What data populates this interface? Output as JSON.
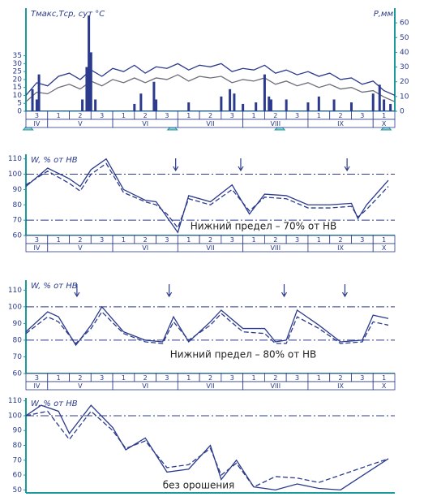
{
  "chart_data": [
    {
      "type": "combo",
      "y_label": "Tмакс,Tср, сут °С",
      "y2_label": "Р,мм",
      "xlim": [
        0,
        17
      ],
      "ylim": [
        0,
        65
      ],
      "yticks": [
        0,
        5,
        10,
        15,
        20,
        25,
        30,
        35
      ],
      "y2lim": [
        0,
        70
      ],
      "y2ticks": [
        0,
        10,
        20,
        30,
        40,
        50,
        60
      ],
      "decades": [
        "3",
        "1",
        "2",
        "3",
        "1",
        "2",
        "3",
        "1",
        "2",
        "3",
        "1",
        "2",
        "3",
        "1",
        "2",
        "3",
        "1"
      ],
      "months": [
        "IV",
        "V",
        "VI",
        "VII",
        "VIII",
        "IX",
        "X"
      ],
      "month_decades": [
        1,
        3,
        3,
        3,
        3,
        3,
        1
      ],
      "markers_x": [
        0.1,
        6.75,
        11.7,
        16.6
      ],
      "series": [
        {
          "type": "line",
          "color": "#2b3a8c",
          "x": [
            0,
            0.5,
            1,
            1.5,
            2,
            2.5,
            3,
            3.5,
            4,
            4.5,
            5,
            5.5,
            6,
            6.5,
            7,
            7.5,
            8,
            8.5,
            9,
            9.5,
            10,
            10.5,
            11,
            11.5,
            12,
            12.5,
            13,
            13.5,
            14,
            14.5,
            15,
            15.5,
            16,
            16.5,
            17
          ],
          "values": [
            10,
            18,
            16,
            22,
            24,
            20,
            26,
            22,
            27,
            25,
            29,
            24,
            28,
            27,
            30,
            26,
            29,
            28,
            30,
            25,
            27,
            26,
            29,
            24,
            26,
            23,
            25,
            22,
            24,
            20,
            21,
            17,
            19,
            13,
            10
          ]
        },
        {
          "type": "line",
          "color": "#6d6d7a",
          "x": [
            0,
            0.5,
            1,
            1.5,
            2,
            2.5,
            3,
            3.5,
            4,
            4.5,
            5,
            5.5,
            6,
            6.5,
            7,
            7.5,
            8,
            8.5,
            9,
            9.5,
            10,
            10.5,
            11,
            11.5,
            12,
            12.5,
            13,
            13.5,
            14,
            14.5,
            15,
            15.5,
            16,
            16.5,
            17
          ],
          "values": [
            6,
            12,
            11,
            15,
            17,
            14,
            19,
            16,
            20,
            18,
            21,
            18,
            21,
            20,
            23,
            19,
            22,
            21,
            22,
            18,
            20,
            19,
            21,
            17,
            19,
            16,
            18,
            15,
            17,
            14,
            15,
            12,
            13,
            9,
            6
          ]
        },
        {
          "type": "bar",
          "axis": "y2",
          "color": "#2b3a8c",
          "x": [
            0.3,
            0.5,
            0.6,
            2.6,
            2.8,
            2.9,
            3.0,
            3.2,
            5.0,
            5.3,
            5.9,
            6.0,
            7.5,
            9.0,
            9.4,
            9.6,
            10.0,
            10.6,
            11.0,
            11.2,
            11.3,
            12.0,
            13.0,
            13.5,
            14.2,
            15.0,
            16.0,
            16.3,
            16.5,
            16.8
          ],
          "values": [
            15,
            8,
            25,
            8,
            30,
            65,
            40,
            8,
            5,
            12,
            20,
            8,
            6,
            10,
            15,
            12,
            5,
            6,
            25,
            10,
            8,
            8,
            6,
            10,
            8,
            6,
            12,
            18,
            8,
            5
          ]
        }
      ]
    },
    {
      "type": "line",
      "y_label": "W, % от НВ",
      "annotation": "Нижний предел – 70% от НВ",
      "xlim": [
        0,
        17
      ],
      "ylim": [
        60,
        113
      ],
      "yticks": [
        60,
        70,
        80,
        90,
        100,
        110
      ],
      "hlines": [
        100,
        70
      ],
      "irrigations": [
        6.9,
        9.9,
        14.8
      ],
      "decades": [
        "3",
        "1",
        "2",
        "3",
        "1",
        "2",
        "3",
        "1",
        "2",
        "3",
        "1",
        "2",
        "3",
        "1",
        "2",
        "3",
        "1"
      ],
      "months": [
        "IV",
        "V",
        "VI",
        "VII",
        "VIII",
        "IX",
        "X"
      ],
      "month_decades": [
        1,
        3,
        3,
        3,
        3,
        3,
        1
      ],
      "series": [
        {
          "color": "#2b3a8c",
          "linestyle": "solid",
          "x": [
            0,
            1,
            2,
            2.5,
            3,
            3.7,
            4.5,
            5.5,
            6,
            6.5,
            7,
            7.5,
            8.5,
            9.5,
            10.3,
            11,
            12,
            13,
            14,
            15,
            15.3,
            15.7,
            16.7
          ],
          "values": [
            92,
            104,
            97,
            92,
            103,
            110,
            90,
            83,
            82,
            72,
            62,
            86,
            82,
            93,
            74,
            87,
            86,
            80,
            80,
            81,
            71,
            80,
            96
          ]
        },
        {
          "color": "#2b3a8c",
          "linestyle": "dashed",
          "x": [
            0,
            1,
            2,
            2.5,
            3,
            3.7,
            4.5,
            5.5,
            6,
            6.5,
            7,
            7.5,
            8.5,
            9.5,
            10.3,
            11,
            12,
            13,
            14,
            15,
            15.3,
            15.7,
            16.7
          ],
          "values": [
            93,
            102,
            94,
            89,
            100,
            107,
            88,
            82,
            80,
            74,
            65,
            84,
            80,
            90,
            76,
            85,
            84,
            78,
            78,
            79,
            72,
            77,
            92
          ]
        }
      ]
    },
    {
      "type": "line",
      "y_label": "W, % от НВ",
      "annotation": "Нижний предел – 80% от НВ",
      "xlim": [
        0,
        17
      ],
      "ylim": [
        60,
        116
      ],
      "yticks": [
        60,
        70,
        80,
        90,
        100,
        110
      ],
      "hlines": [
        100,
        80
      ],
      "irrigations": [
        2.35,
        6.6,
        11.9,
        14.7
      ],
      "decades": [
        "3",
        "1",
        "2",
        "3",
        "1",
        "2",
        "3",
        "1",
        "2",
        "3",
        "1",
        "2",
        "3",
        "1",
        "2",
        "3",
        "1"
      ],
      "months": [
        "IV",
        "V",
        "VI",
        "VII",
        "VIII",
        "IX",
        "X"
      ],
      "month_decades": [
        1,
        3,
        3,
        3,
        3,
        3,
        1
      ],
      "series": [
        {
          "color": "#2b3a8c",
          "linestyle": "solid",
          "x": [
            0,
            1,
            1.5,
            2.3,
            3,
            3.5,
            4.5,
            5.5,
            6.3,
            6.8,
            7.5,
            8.5,
            9,
            10,
            11,
            11.5,
            12,
            12.5,
            13.5,
            14.5,
            15.5,
            16,
            16.7
          ],
          "values": [
            85,
            97,
            94,
            77,
            89,
            100,
            85,
            80,
            79,
            94,
            79,
            91,
            98,
            87,
            87,
            79,
            80,
            98,
            89,
            79,
            80,
            95,
            93
          ]
        },
        {
          "color": "#2b3a8c",
          "linestyle": "dashed",
          "x": [
            0,
            1,
            1.5,
            2.3,
            3,
            3.5,
            4.5,
            5.5,
            6.3,
            6.8,
            7.5,
            8.5,
            9,
            10,
            11,
            11.5,
            12,
            12.5,
            13.5,
            14.5,
            15.5,
            16,
            16.7
          ],
          "values": [
            84,
            94,
            91,
            78,
            87,
            97,
            84,
            79,
            78,
            91,
            80,
            89,
            96,
            85,
            84,
            78,
            78,
            94,
            87,
            78,
            79,
            91,
            89
          ]
        }
      ]
    },
    {
      "type": "line",
      "y_label": "W, % от НВ",
      "annotation": "без орошения",
      "xlim": [
        0,
        17
      ],
      "ylim": [
        48,
        112
      ],
      "yticks": [
        50,
        60,
        70,
        80,
        90,
        100,
        110
      ],
      "hlines": [
        100
      ],
      "series": [
        {
          "color": "#2b3a8c",
          "linestyle": "solid",
          "x": [
            0,
            0.7,
            1.5,
            2,
            3,
            4,
            4.6,
            5.5,
            6.5,
            7.5,
            8.5,
            9,
            9.7,
            10.5,
            11.5,
            12.5,
            13.5,
            14.5,
            16.7
          ],
          "values": [
            100,
            107,
            103,
            88,
            107,
            92,
            77,
            85,
            62,
            64,
            80,
            57,
            70,
            52,
            50,
            54,
            51,
            50,
            71
          ]
        },
        {
          "color": "#2b3a8c",
          "linestyle": "dashed",
          "x": [
            0,
            1,
            2,
            3,
            4,
            4.6,
            5.5,
            6.5,
            7.5,
            8.5,
            9,
            9.7,
            10.5,
            11.5,
            12.5,
            13.5,
            14.5,
            16.7
          ],
          "values": [
            100,
            103,
            84,
            103,
            90,
            78,
            83,
            65,
            67,
            78,
            60,
            68,
            52,
            59,
            58,
            55,
            60,
            71
          ]
        }
      ]
    }
  ]
}
